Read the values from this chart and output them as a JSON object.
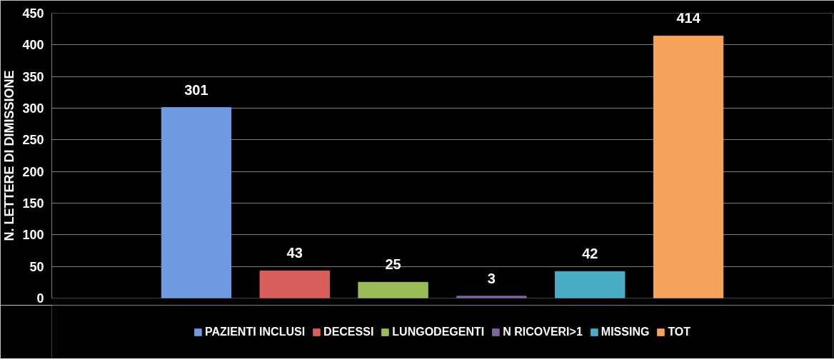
{
  "chart_data": {
    "type": "bar",
    "ylabel": "N. LETTERE DI DIMISSIONE",
    "categories": [
      null
    ],
    "series": [
      {
        "name": "PAZIENTI INCLUSI",
        "color": "#6f9be0",
        "values": [
          301
        ]
      },
      {
        "name": "DECESSI",
        "color": "#d95f5c",
        "values": [
          43
        ]
      },
      {
        "name": "LUNGODEGENTI",
        "color": "#9bbb59",
        "values": [
          25
        ]
      },
      {
        "name": "N RICOVERI>1",
        "color": "#8064a2",
        "values": [
          3
        ]
      },
      {
        "name": "MISSING",
        "color": "#4bacc6",
        "values": [
          42
        ]
      },
      {
        "name": "TOT",
        "color": "#f8a35c",
        "values": [
          414
        ]
      }
    ],
    "ylim": [
      0,
      450
    ],
    "yticks": [
      0,
      50,
      100,
      150,
      200,
      250,
      300,
      350,
      400,
      450
    ],
    "grid": "y",
    "legend": "bottom",
    "data_labels": true
  }
}
